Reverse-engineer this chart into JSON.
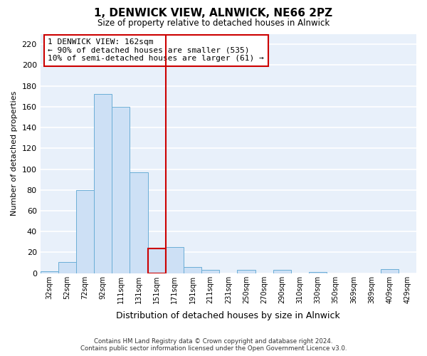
{
  "title": "1, DENWICK VIEW, ALNWICK, NE66 2PZ",
  "subtitle": "Size of property relative to detached houses in Alnwick",
  "xlabel": "Distribution of detached houses by size in Alnwick",
  "ylabel": "Number of detached properties",
  "bar_labels": [
    "32sqm",
    "52sqm",
    "72sqm",
    "92sqm",
    "111sqm",
    "131sqm",
    "151sqm",
    "171sqm",
    "191sqm",
    "211sqm",
    "231sqm",
    "250sqm",
    "270sqm",
    "290sqm",
    "310sqm",
    "330sqm",
    "350sqm",
    "369sqm",
    "389sqm",
    "409sqm",
    "429sqm"
  ],
  "bar_heights": [
    2,
    11,
    80,
    172,
    160,
    97,
    24,
    25,
    6,
    3,
    0,
    3,
    0,
    3,
    0,
    1,
    0,
    0,
    0,
    4,
    0
  ],
  "bar_color": "#cde0f5",
  "bar_edge_color": "#6baed6",
  "highlight_bar_index": 6,
  "highlight_edge_color": "#cc0000",
  "vline_x": 6.5,
  "vline_color": "#cc0000",
  "annotation_title": "1 DENWICK VIEW: 162sqm",
  "annotation_line1": "← 90% of detached houses are smaller (535)",
  "annotation_line2": "10% of semi-detached houses are larger (61) →",
  "ylim": [
    0,
    230
  ],
  "yticks": [
    0,
    20,
    40,
    60,
    80,
    100,
    120,
    140,
    160,
    180,
    200,
    220
  ],
  "footer_line1": "Contains HM Land Registry data © Crown copyright and database right 2024.",
  "footer_line2": "Contains public sector information licensed under the Open Government Licence v3.0.",
  "plot_bg_color": "#e8f0fa",
  "fig_bg_color": "#ffffff",
  "grid_color": "#ffffff"
}
